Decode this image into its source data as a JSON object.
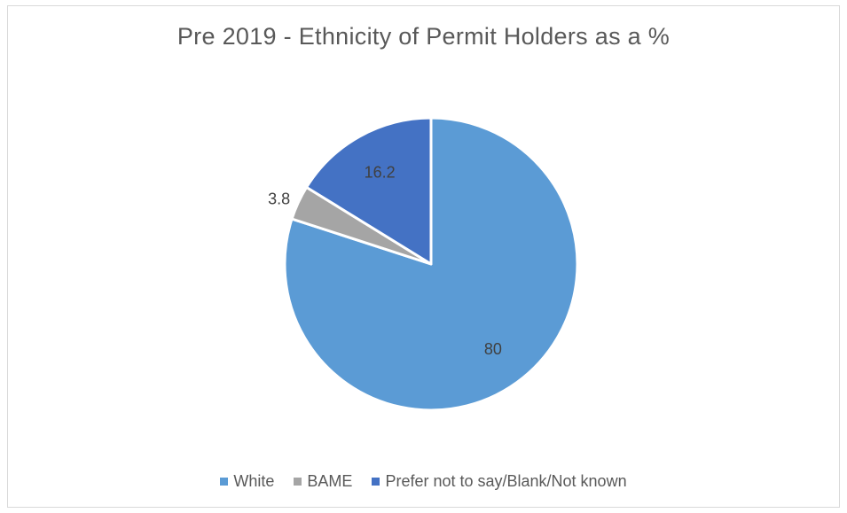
{
  "chart_data": {
    "type": "pie",
    "title": "Pre 2019 - Ethnicity of Permit Holders as a %",
    "slices": [
      {
        "label": "White",
        "value": 80,
        "data_label": "80",
        "color": "#5b9bd5"
      },
      {
        "label": "BAME",
        "value": 3.8,
        "data_label": "3.8",
        "color": "#a5a5a5"
      },
      {
        "label": "Prefer not to say/Blank/Not known",
        "value": 16.2,
        "data_label": "16.2",
        "color": "#4472c4"
      }
    ],
    "legend_position": "bottom",
    "start": "12 o'clock, clockwise"
  }
}
